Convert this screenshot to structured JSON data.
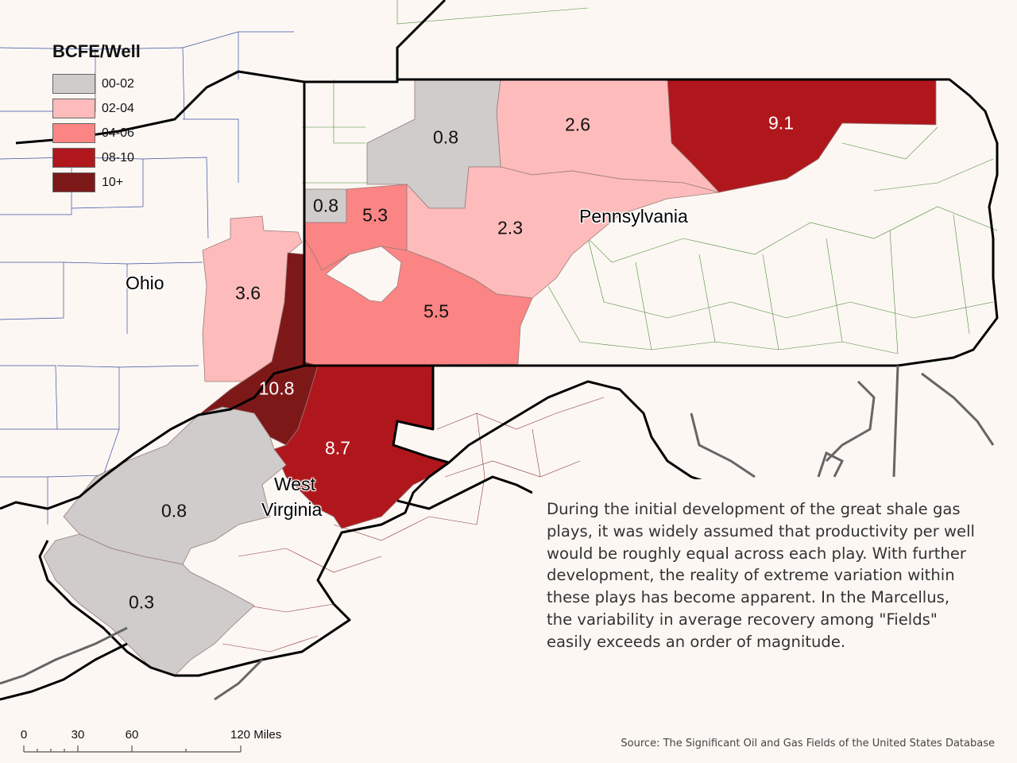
{
  "legend": {
    "title": "BCFE/Well",
    "items": [
      {
        "label": "00-02",
        "color": "#cfcccb"
      },
      {
        "label": "02-04",
        "color": "#fdbcbb"
      },
      {
        "label": "04-06",
        "color": "#fb8584"
      },
      {
        "label": "08-10",
        "color": "#b0171c"
      },
      {
        "label": "10+",
        "color": "#7d1819"
      }
    ]
  },
  "fields": [
    {
      "value": "0.8",
      "color": "#cfcccb"
    },
    {
      "value": "2.6",
      "color": "#fdbcbb"
    },
    {
      "value": "9.1",
      "color": "#b0171c"
    },
    {
      "value": "0.8",
      "color": "#cfcccb"
    },
    {
      "value": "5.3",
      "color": "#fb8584"
    },
    {
      "value": "2.3",
      "color": "#fdbcbb"
    },
    {
      "value": "3.6",
      "color": "#fdbcbb"
    },
    {
      "value": "5.5",
      "color": "#fb8584"
    },
    {
      "value": "10.8",
      "color": "#7d1819"
    },
    {
      "value": "8.7",
      "color": "#b0171c"
    },
    {
      "value": "0.8",
      "color": "#cfcccb"
    },
    {
      "value": "0.3",
      "color": "#cfcccb"
    }
  ],
  "states": {
    "pennsylvania": "Pennsylvania",
    "ohio": "Ohio",
    "west_virginia_1": "West",
    "west_virginia_2": "Virginia"
  },
  "description": "During the initial development of the great shale gas plays, it was widely assumed that productivity per well would be roughly equal across each play. With further development, the reality of extreme variation within these plays has become apparent. In the Marcellus, the variability in average recovery among \"Fields\" easily exceeds an order of magnitude.",
  "scale": {
    "ticks": [
      "0",
      "30",
      "60",
      "120 Miles"
    ]
  },
  "source": "Source:  The Significant Oil and Gas Fields of the United States Database"
}
